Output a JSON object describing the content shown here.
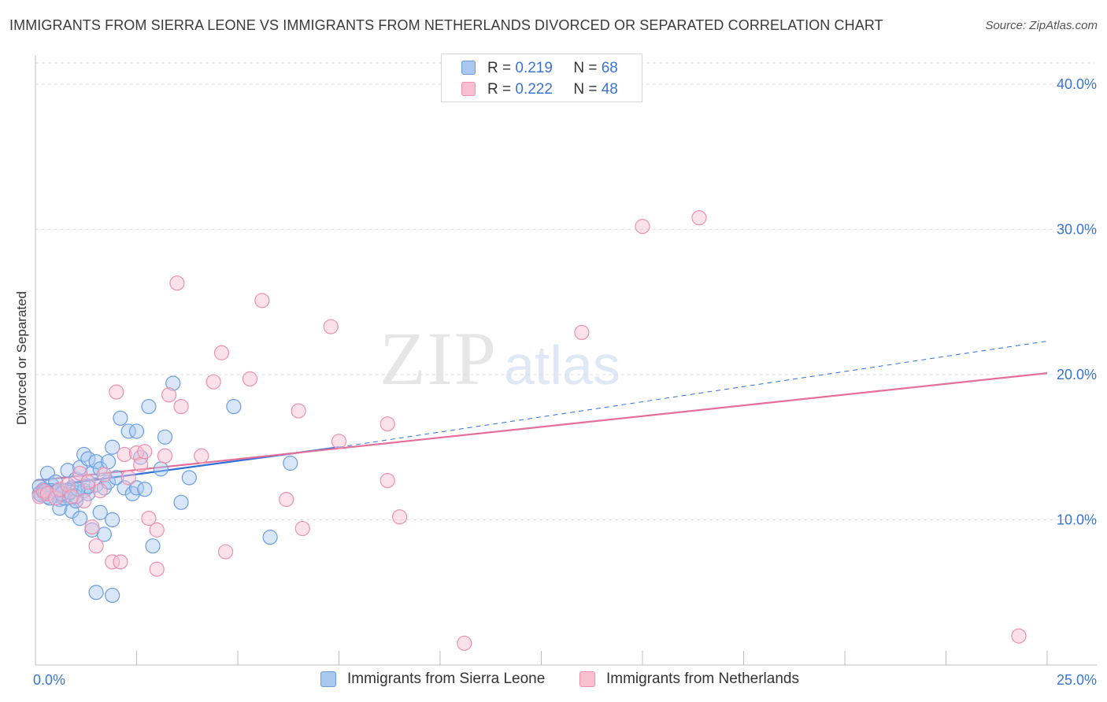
{
  "title": "IMMIGRANTS FROM SIERRA LEONE VS IMMIGRANTS FROM NETHERLANDS DIVORCED OR SEPARATED CORRELATION CHART",
  "source": "Source: ZipAtlas.com",
  "watermark": {
    "part1": "ZIP",
    "part2": "atlas"
  },
  "legend_top": {
    "rows": [
      {
        "r_label": "R =",
        "r_value": "0.219",
        "n_label": "N =",
        "n_value": "68"
      },
      {
        "r_label": "R =",
        "r_value": "0.222",
        "n_label": "N =",
        "n_value": "48"
      }
    ]
  },
  "legend_bottom": {
    "items": [
      {
        "label": "Immigrants from Sierra Leone"
      },
      {
        "label": "Immigrants from Netherlands"
      }
    ]
  },
  "colors": {
    "series_a_fill": "#a9c8f0",
    "series_a_stroke": "#6a9de0",
    "series_a_line": "#2f6fd6",
    "series_b_fill": "#f7bfd0",
    "series_b_stroke": "#ec90ae",
    "series_b_line": "#e46f9a",
    "tick_text": "#3a74d0",
    "grid": "#dddddd"
  },
  "chart_data": {
    "type": "scatter",
    "title": "IMMIGRANTS FROM SIERRA LEONE VS IMMIGRANTS FROM NETHERLANDS DIVORCED OR SEPARATED CORRELATION CHART",
    "xlabel": "",
    "ylabel": "Divorced or Separated",
    "xlim": [
      0,
      25
    ],
    "ylim": [
      0,
      42
    ],
    "x_tick_labels": [
      {
        "value": 0,
        "label": "0.0%"
      },
      {
        "value": 25,
        "label": "25.0%"
      }
    ],
    "y_tick_labels": [
      {
        "value": 10,
        "label": "10.0%"
      },
      {
        "value": 20,
        "label": "20.0%"
      },
      {
        "value": 30,
        "label": "30.0%"
      },
      {
        "value": 40,
        "label": "40.0%"
      }
    ],
    "grid": true,
    "legend": "top-center",
    "series": [
      {
        "name": "Immigrants from Sierra Leone",
        "R": 0.219,
        "N": 68,
        "trend": {
          "x": [
            0,
            7.5
          ],
          "y": [
            12.2,
            15.0
          ]
        },
        "trend_extension": {
          "x": [
            7.5,
            25
          ],
          "y": [
            15.0,
            22.3
          ]
        },
        "points": [
          [
            0.1,
            11.8
          ],
          [
            0.2,
            12.1
          ],
          [
            0.3,
            11.6
          ],
          [
            0.3,
            13.2
          ],
          [
            0.4,
            12.4
          ],
          [
            0.5,
            11.9
          ],
          [
            0.5,
            12.6
          ],
          [
            0.6,
            11.4
          ],
          [
            0.6,
            10.8
          ],
          [
            0.7,
            12.0
          ],
          [
            0.8,
            13.4
          ],
          [
            0.8,
            11.7
          ],
          [
            0.9,
            12.2
          ],
          [
            0.9,
            10.6
          ],
          [
            1.0,
            11.3
          ],
          [
            1.0,
            12.8
          ],
          [
            1.1,
            13.6
          ],
          [
            1.1,
            10.1
          ],
          [
            1.2,
            14.5
          ],
          [
            1.2,
            12.0
          ],
          [
            1.3,
            14.2
          ],
          [
            1.3,
            11.8
          ],
          [
            1.4,
            13.2
          ],
          [
            1.4,
            9.3
          ],
          [
            1.5,
            14.0
          ],
          [
            1.5,
            12.4
          ],
          [
            1.6,
            10.5
          ],
          [
            1.6,
            13.5
          ],
          [
            1.7,
            12.2
          ],
          [
            1.7,
            9.0
          ],
          [
            1.8,
            12.6
          ],
          [
            1.8,
            14.0
          ],
          [
            1.9,
            15.0
          ],
          [
            1.9,
            10.0
          ],
          [
            2.0,
            12.9
          ],
          [
            2.1,
            17.0
          ],
          [
            2.2,
            12.2
          ],
          [
            2.3,
            16.1
          ],
          [
            2.4,
            11.8
          ],
          [
            2.5,
            16.1
          ],
          [
            2.5,
            12.2
          ],
          [
            2.6,
            14.3
          ],
          [
            2.7,
            12.1
          ],
          [
            2.8,
            17.8
          ],
          [
            2.9,
            8.2
          ],
          [
            3.1,
            13.5
          ],
          [
            3.2,
            15.7
          ],
          [
            3.4,
            19.4
          ],
          [
            3.6,
            11.2
          ],
          [
            3.8,
            12.9
          ],
          [
            4.9,
            17.8
          ],
          [
            5.8,
            8.8
          ],
          [
            6.3,
            13.9
          ],
          [
            1.5,
            5.0
          ],
          [
            1.9,
            4.8
          ],
          [
            0.2,
            11.9
          ],
          [
            0.4,
            12.0
          ],
          [
            0.7,
            11.5
          ],
          [
            1.0,
            11.6
          ],
          [
            1.3,
            12.3
          ],
          [
            0.1,
            12.3
          ],
          [
            0.15,
            11.7
          ],
          [
            0.25,
            12.0
          ],
          [
            0.35,
            11.5
          ],
          [
            0.55,
            12.0
          ],
          [
            0.65,
            11.8
          ],
          [
            0.85,
            11.9
          ],
          [
            1.05,
            12.1
          ]
        ]
      },
      {
        "name": "Immigrants from Netherlands",
        "R": 0.222,
        "N": 48,
        "trend": {
          "x": [
            0,
            25
          ],
          "y": [
            12.7,
            20.1
          ]
        },
        "points": [
          [
            0.1,
            11.6
          ],
          [
            0.2,
            12.0
          ],
          [
            0.3,
            11.8
          ],
          [
            0.5,
            11.5
          ],
          [
            0.6,
            12.1
          ],
          [
            0.8,
            12.4
          ],
          [
            0.9,
            11.6
          ],
          [
            1.1,
            13.2
          ],
          [
            1.2,
            11.3
          ],
          [
            1.3,
            12.6
          ],
          [
            1.4,
            9.5
          ],
          [
            1.5,
            8.2
          ],
          [
            1.6,
            12.0
          ],
          [
            1.7,
            13.1
          ],
          [
            1.9,
            7.1
          ],
          [
            2.0,
            18.8
          ],
          [
            2.1,
            7.1
          ],
          [
            2.2,
            14.5
          ],
          [
            2.3,
            12.9
          ],
          [
            2.5,
            14.6
          ],
          [
            2.6,
            13.8
          ],
          [
            2.8,
            10.1
          ],
          [
            3.0,
            6.6
          ],
          [
            3.0,
            9.3
          ],
          [
            3.2,
            14.4
          ],
          [
            3.3,
            18.6
          ],
          [
            3.5,
            26.3
          ],
          [
            3.6,
            17.8
          ],
          [
            4.1,
            14.4
          ],
          [
            4.4,
            19.5
          ],
          [
            4.6,
            21.5
          ],
          [
            4.7,
            7.8
          ],
          [
            5.3,
            19.7
          ],
          [
            5.6,
            25.1
          ],
          [
            6.2,
            11.4
          ],
          [
            6.5,
            17.5
          ],
          [
            6.6,
            9.4
          ],
          [
            7.3,
            23.3
          ],
          [
            7.5,
            15.4
          ],
          [
            8.7,
            16.6
          ],
          [
            8.7,
            12.7
          ],
          [
            9.0,
            10.2
          ],
          [
            10.6,
            1.5
          ],
          [
            13.5,
            22.9
          ],
          [
            15.0,
            30.2
          ],
          [
            16.4,
            30.8
          ],
          [
            24.3,
            2.0
          ],
          [
            2.7,
            14.7
          ]
        ]
      }
    ]
  }
}
